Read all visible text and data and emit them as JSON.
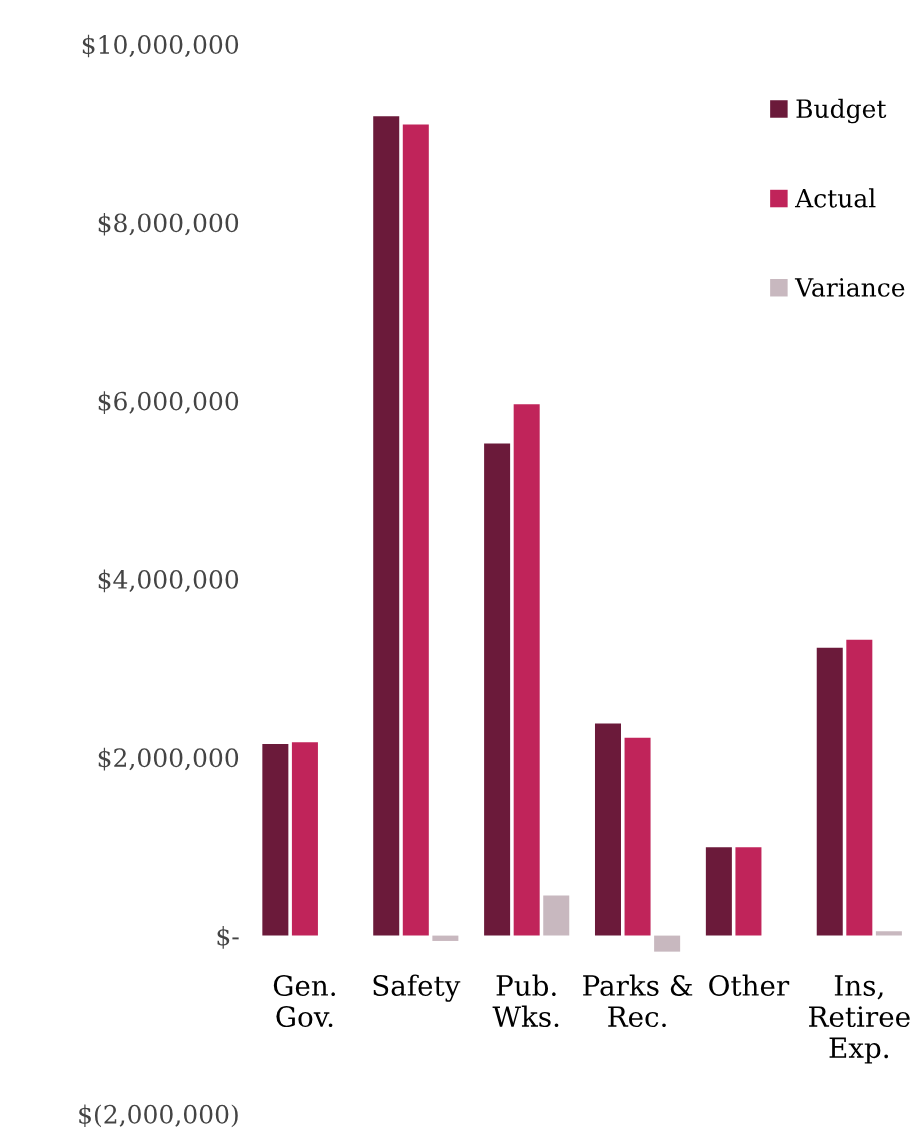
{
  "chart_data": {
    "type": "bar",
    "categories": [
      "Gen.\nGov.",
      "Safety",
      "Pub.\nWks.",
      "Parks &\nRec.",
      "Other",
      "Ins,\nRetiree\nExp."
    ],
    "series": [
      {
        "name": "Budget",
        "color": "#6b1a3a",
        "values": [
          2150000,
          9190000,
          5520000,
          2380000,
          990000,
          3230000
        ]
      },
      {
        "name": "Actual",
        "color": "#c0245a",
        "values": [
          2170000,
          9100000,
          5960000,
          2220000,
          990000,
          3320000
        ]
      },
      {
        "name": "Variance",
        "color": "#c8b8bf",
        "values": [
          null,
          -60000,
          450000,
          -180000,
          null,
          50000
        ]
      }
    ],
    "ylim": [
      -2000000,
      10000000
    ],
    "yticks": [
      {
        "value": -2000000,
        "label": "$(2,000,000)"
      },
      {
        "value": 0,
        "label": "$-"
      },
      {
        "value": 2000000,
        "label": "$2,000,000"
      },
      {
        "value": 4000000,
        "label": "$4,000,000"
      },
      {
        "value": 6000000,
        "label": "$6,000,000"
      },
      {
        "value": 8000000,
        "label": "$8,000,000"
      },
      {
        "value": 10000000,
        "label": "$10,000,000"
      }
    ],
    "grid": false,
    "legend": "top right"
  }
}
